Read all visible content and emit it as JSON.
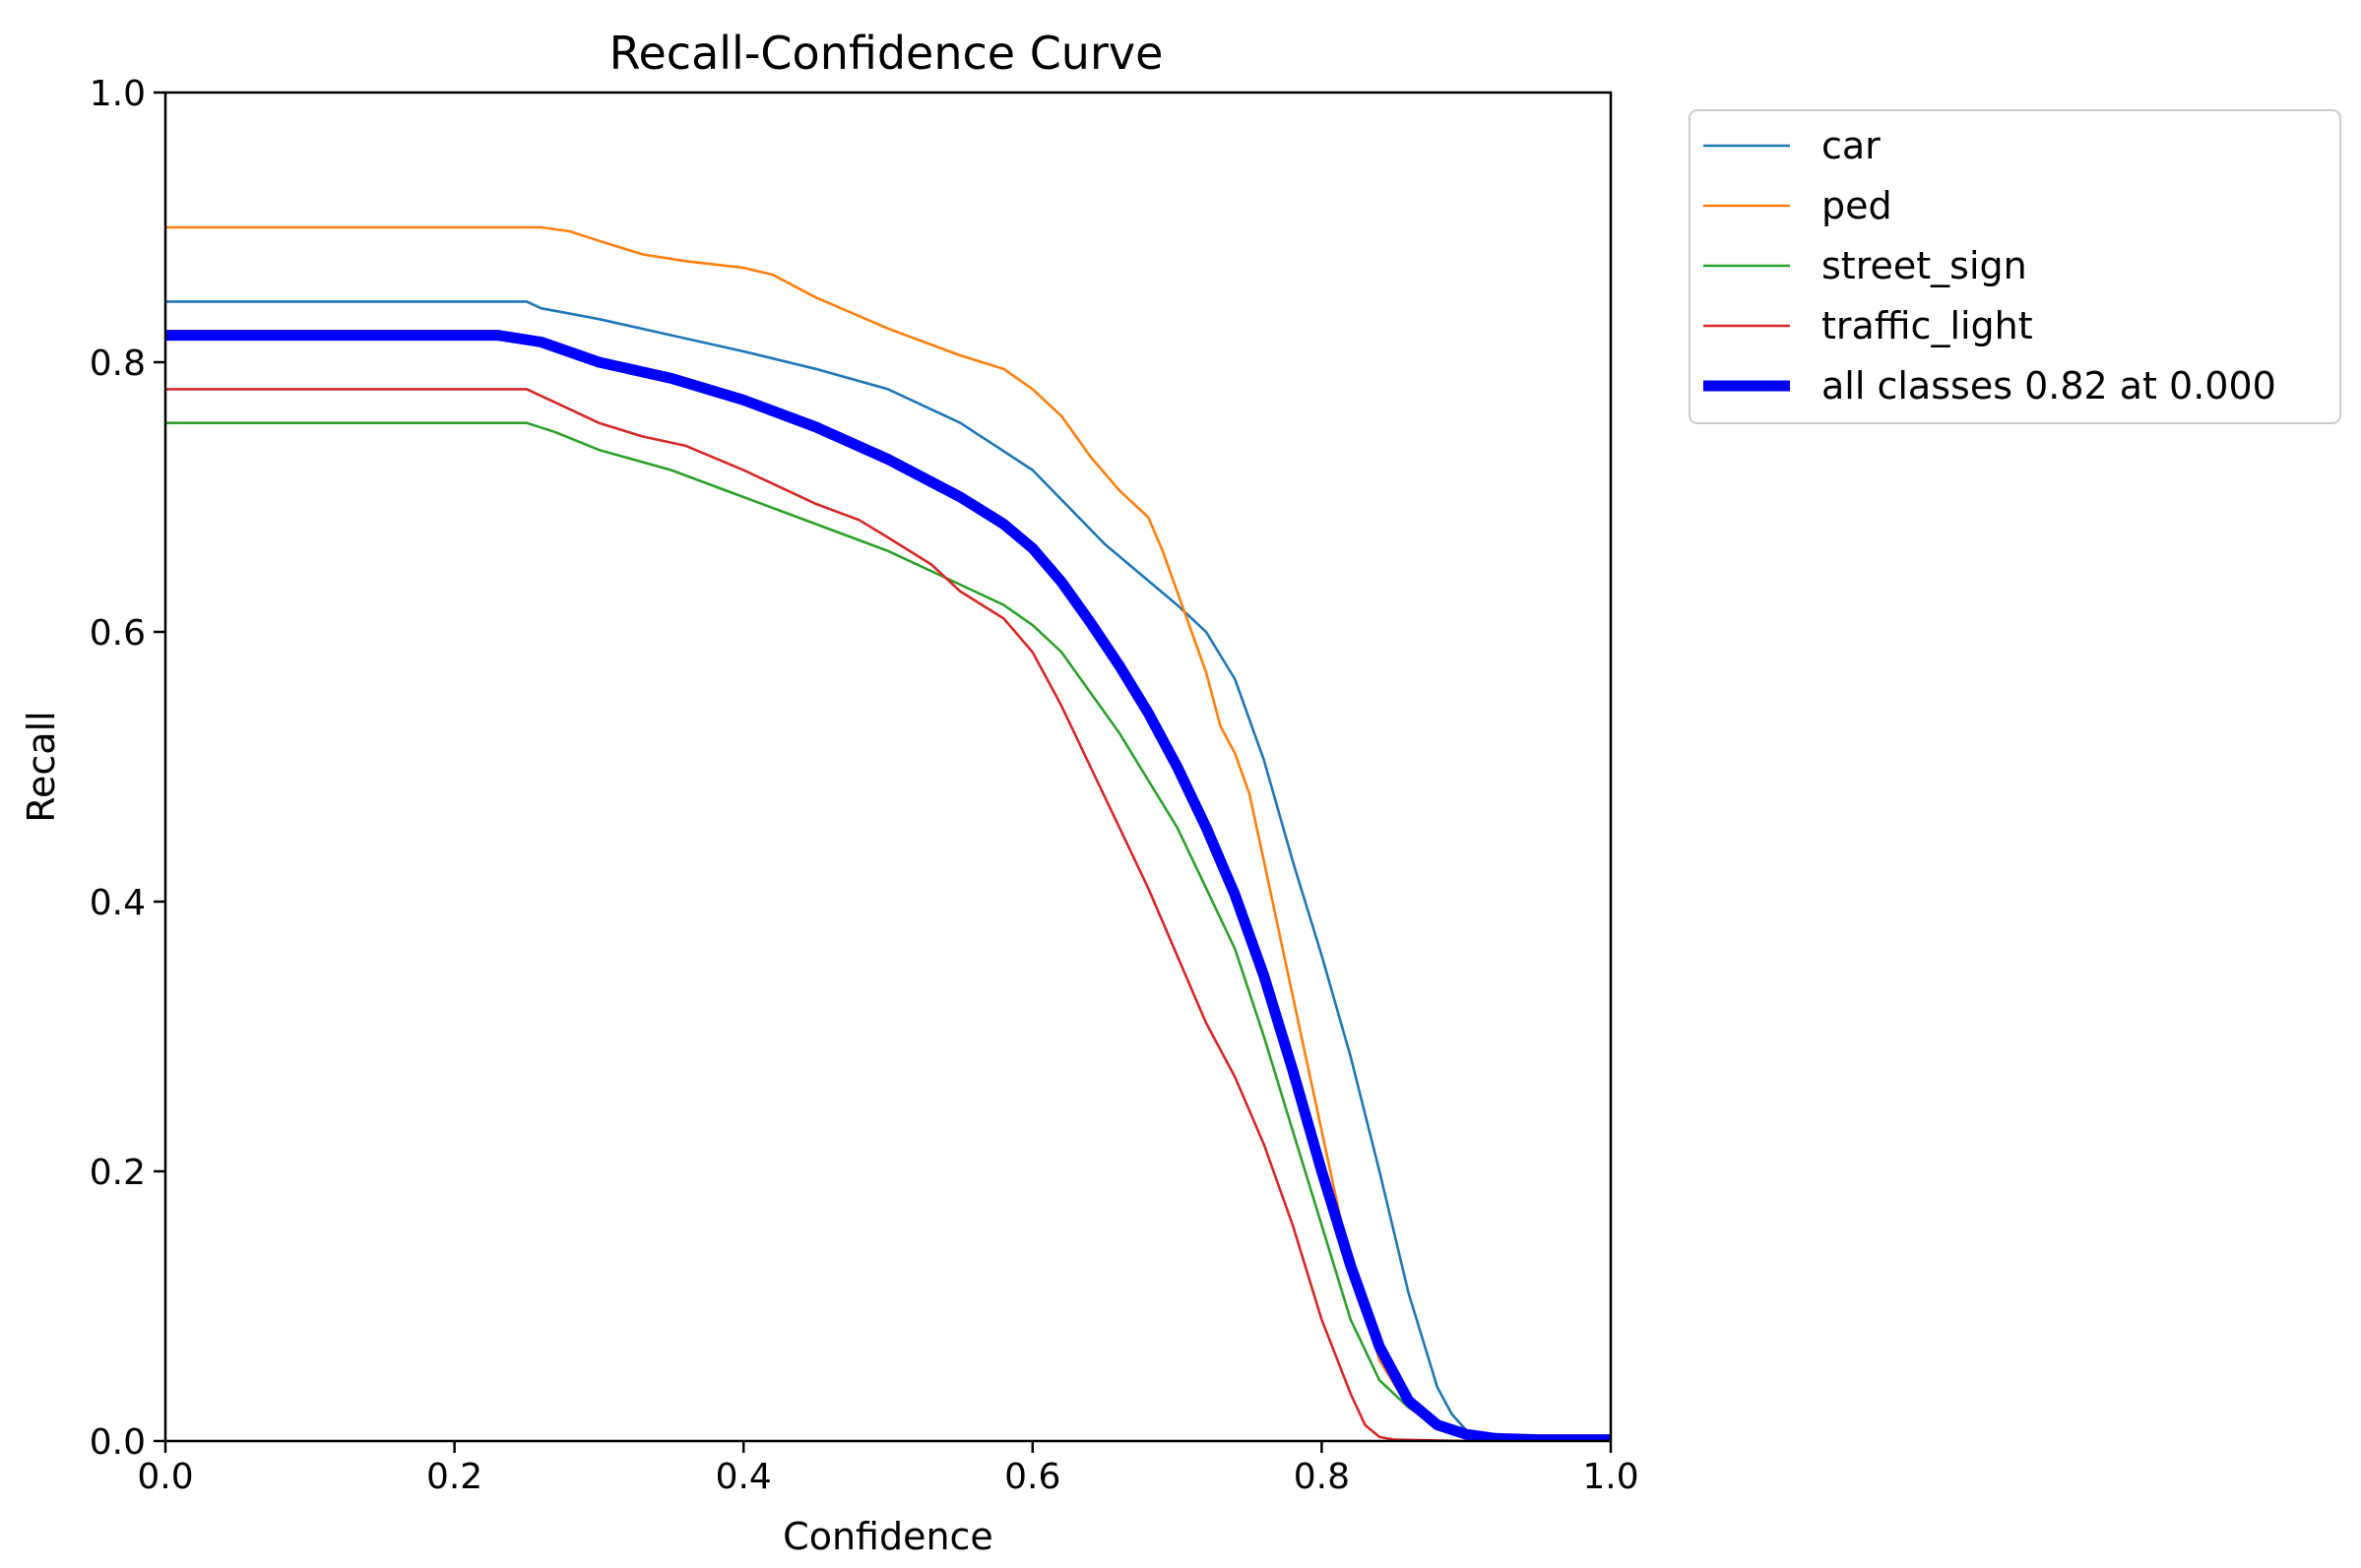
{
  "chart_data": {
    "type": "line",
    "title": "Recall-Confidence Curve",
    "xlabel": "Confidence",
    "ylabel": "Recall",
    "xlim": [
      0.0,
      1.0
    ],
    "ylim": [
      0.0,
      1.0
    ],
    "xticks": [
      "0.0",
      "0.2",
      "0.4",
      "0.6",
      "0.8",
      "1.0"
    ],
    "yticks": [
      "0.0",
      "0.2",
      "0.4",
      "0.6",
      "0.8",
      "1.0"
    ],
    "grid": false,
    "legend_position": "outside-top-right",
    "series": [
      {
        "name": "car",
        "color": "#1f77b4",
        "line_style": "thin",
        "x": [
          0.0,
          0.25,
          0.26,
          0.3,
          0.35,
          0.4,
          0.45,
          0.5,
          0.55,
          0.6,
          0.65,
          0.7,
          0.72,
          0.74,
          0.76,
          0.78,
          0.8,
          0.82,
          0.84,
          0.86,
          0.88,
          0.89,
          0.9,
          0.91,
          0.92,
          0.95,
          1.0
        ],
        "y": [
          0.845,
          0.845,
          0.84,
          0.832,
          0.82,
          0.808,
          0.795,
          0.78,
          0.755,
          0.72,
          0.665,
          0.62,
          0.6,
          0.565,
          0.505,
          0.43,
          0.36,
          0.285,
          0.2,
          0.11,
          0.04,
          0.02,
          0.008,
          0.004,
          0.002,
          0.001,
          0.001
        ]
      },
      {
        "name": "ped",
        "color": "#ff7f0e",
        "line_style": "thin",
        "x": [
          0.0,
          0.26,
          0.28,
          0.3,
          0.33,
          0.36,
          0.4,
          0.42,
          0.45,
          0.5,
          0.55,
          0.58,
          0.6,
          0.62,
          0.64,
          0.66,
          0.68,
          0.69,
          0.7,
          0.71,
          0.72,
          0.73,
          0.74,
          0.75,
          0.76,
          0.78,
          0.8,
          0.82,
          0.84,
          0.86,
          0.88,
          0.9,
          0.92,
          1.0
        ],
        "y": [
          0.9,
          0.9,
          0.897,
          0.89,
          0.88,
          0.875,
          0.87,
          0.865,
          0.848,
          0.825,
          0.805,
          0.795,
          0.78,
          0.76,
          0.73,
          0.705,
          0.685,
          0.66,
          0.63,
          0.6,
          0.57,
          0.53,
          0.51,
          0.48,
          0.43,
          0.33,
          0.23,
          0.13,
          0.06,
          0.025,
          0.01,
          0.004,
          0.002,
          0.001
        ]
      },
      {
        "name": "street_sign",
        "color": "#2ca02c",
        "line_style": "thin",
        "x": [
          0.0,
          0.25,
          0.27,
          0.3,
          0.35,
          0.4,
          0.45,
          0.5,
          0.55,
          0.58,
          0.6,
          0.62,
          0.64,
          0.66,
          0.68,
          0.7,
          0.72,
          0.74,
          0.76,
          0.78,
          0.8,
          0.82,
          0.84,
          0.86,
          0.88,
          0.9,
          0.92,
          0.95,
          1.0
        ],
        "y": [
          0.755,
          0.755,
          0.748,
          0.735,
          0.72,
          0.7,
          0.68,
          0.66,
          0.635,
          0.62,
          0.605,
          0.585,
          0.555,
          0.525,
          0.49,
          0.455,
          0.41,
          0.365,
          0.3,
          0.23,
          0.16,
          0.09,
          0.045,
          0.025,
          0.012,
          0.005,
          0.002,
          0.001,
          0.0
        ]
      },
      {
        "name": "traffic_light",
        "color": "#d62728",
        "line_style": "thin",
        "x": [
          0.0,
          0.25,
          0.27,
          0.3,
          0.33,
          0.36,
          0.4,
          0.42,
          0.45,
          0.48,
          0.5,
          0.53,
          0.55,
          0.58,
          0.6,
          0.62,
          0.64,
          0.66,
          0.68,
          0.7,
          0.72,
          0.74,
          0.76,
          0.78,
          0.8,
          0.82,
          0.83,
          0.84,
          0.85,
          0.9,
          1.0
        ],
        "y": [
          0.78,
          0.78,
          0.77,
          0.755,
          0.745,
          0.738,
          0.72,
          0.71,
          0.695,
          0.683,
          0.67,
          0.65,
          0.63,
          0.61,
          0.585,
          0.545,
          0.5,
          0.455,
          0.41,
          0.36,
          0.31,
          0.27,
          0.22,
          0.16,
          0.09,
          0.035,
          0.012,
          0.003,
          0.001,
          0.0,
          0.0
        ]
      },
      {
        "name": "all classes 0.82 at 0.000",
        "color": "#0000ff",
        "line_style": "thick",
        "x": [
          0.0,
          0.23,
          0.26,
          0.3,
          0.35,
          0.4,
          0.45,
          0.5,
          0.55,
          0.58,
          0.6,
          0.62,
          0.64,
          0.66,
          0.68,
          0.7,
          0.72,
          0.74,
          0.76,
          0.78,
          0.8,
          0.82,
          0.84,
          0.86,
          0.88,
          0.9,
          0.92,
          0.95,
          1.0
        ],
        "y": [
          0.82,
          0.82,
          0.815,
          0.8,
          0.788,
          0.772,
          0.752,
          0.728,
          0.7,
          0.68,
          0.662,
          0.637,
          0.607,
          0.575,
          0.54,
          0.5,
          0.455,
          0.405,
          0.345,
          0.275,
          0.2,
          0.13,
          0.07,
          0.03,
          0.012,
          0.005,
          0.002,
          0.001,
          0.001
        ]
      }
    ]
  }
}
